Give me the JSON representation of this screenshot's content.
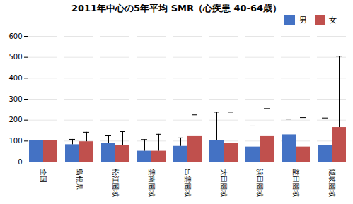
{
  "chart_data": {
    "type": "bar",
    "title": "2011年中心の5年平均 SMR（心疾患 40-64歳）",
    "categories": [
      "全国",
      "島根県",
      "松江圏域",
      "雲南圏域",
      "出雲圏域",
      "大田圏域",
      "浜田圏域",
      "益田圏域",
      "隠岐圏域"
    ],
    "series": [
      {
        "name": "男",
        "color": "#4472c4",
        "values": [
          103,
          83,
          88,
          52,
          75,
          103,
          72,
          130,
          80
        ],
        "errors": [
          0,
          25,
          40,
          55,
          40,
          135,
          100,
          75,
          130
        ]
      },
      {
        "name": "女",
        "color": "#c0504d",
        "values": [
          102,
          97,
          80,
          52,
          125,
          88,
          125,
          72,
          165
        ],
        "errors": [
          0,
          45,
          65,
          80,
          100,
          150,
          130,
          140,
          340
        ]
      }
    ],
    "ylim": [
      0,
      600
    ],
    "yticks": [
      0,
      100,
      200,
      300,
      400,
      500,
      600
    ],
    "grid": true,
    "legend": "upper right"
  }
}
